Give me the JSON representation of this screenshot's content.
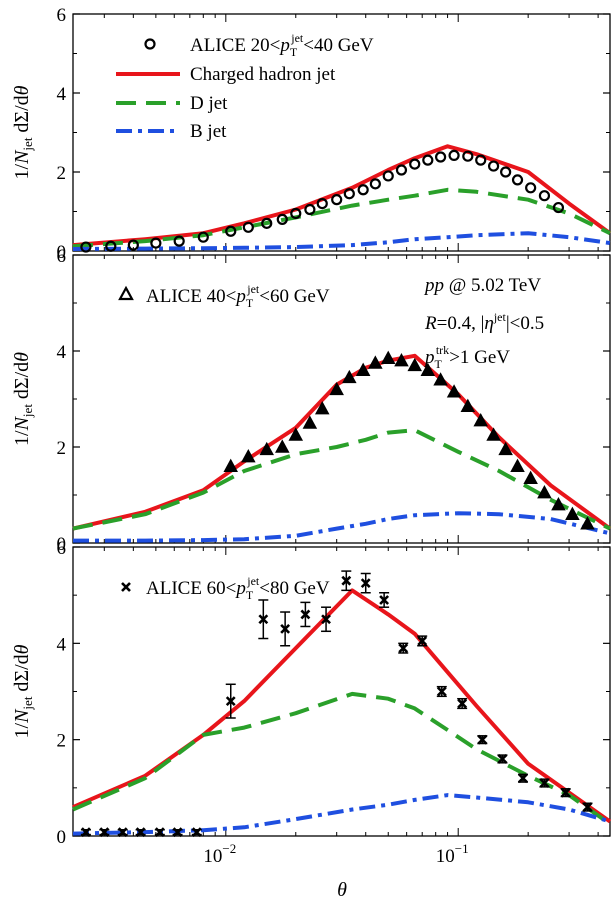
{
  "figure": {
    "ylabel": "1/N_jet dΣ/dθ",
    "xlabel": "θ",
    "x_ticklabels": [
      "10",
      "10"
    ],
    "x_tick_exponents": [
      "−2",
      "−1"
    ]
  },
  "chart_data": [
    {
      "type": "line",
      "panel": "top",
      "x_scale": "log",
      "xlim": [
        0.0022,
        0.45
      ],
      "ylim": [
        0,
        6
      ],
      "yticks": [
        0,
        2,
        4,
        6
      ],
      "legend_position": "top-left",
      "legend": [
        "ALICE 20<p_T^jet<40 GeV",
        "Charged hadron jet",
        "D jet",
        "B jet"
      ],
      "series": [
        {
          "name": "Charged hadron jet",
          "color": "#e8151b",
          "style": "solid",
          "x": [
            0.0022,
            0.0045,
            0.008,
            0.012,
            0.02,
            0.035,
            0.05,
            0.065,
            0.09,
            0.12,
            0.2,
            0.3,
            0.45
          ],
          "y": [
            0.15,
            0.3,
            0.45,
            0.7,
            1.05,
            1.6,
            2.05,
            2.35,
            2.65,
            2.45,
            2.0,
            1.2,
            0.45
          ]
        },
        {
          "name": "D jet",
          "color": "#2aa02a",
          "style": "dash",
          "x": [
            0.0022,
            0.0045,
            0.008,
            0.012,
            0.02,
            0.035,
            0.05,
            0.065,
            0.09,
            0.12,
            0.2,
            0.3,
            0.45
          ],
          "y": [
            0.12,
            0.25,
            0.4,
            0.6,
            0.85,
            1.15,
            1.3,
            1.4,
            1.55,
            1.5,
            1.3,
            0.95,
            0.45
          ]
        },
        {
          "name": "B jet",
          "color": "#1f4fe0",
          "style": "dashdot",
          "x": [
            0.0022,
            0.0045,
            0.008,
            0.012,
            0.02,
            0.035,
            0.05,
            0.065,
            0.09,
            0.12,
            0.2,
            0.3,
            0.45
          ],
          "y": [
            0.05,
            0.06,
            0.07,
            0.08,
            0.1,
            0.15,
            0.22,
            0.3,
            0.35,
            0.4,
            0.45,
            0.35,
            0.2
          ]
        },
        {
          "name": "ALICE 20<p_T^jet<40 GeV",
          "marker": "circle",
          "x": [
            0.0025,
            0.0032,
            0.004,
            0.005,
            0.0063,
            0.008,
            0.0105,
            0.0125,
            0.015,
            0.0175,
            0.02,
            0.023,
            0.026,
            0.03,
            0.034,
            0.039,
            0.044,
            0.05,
            0.057,
            0.065,
            0.074,
            0.084,
            0.096,
            0.11,
            0.125,
            0.142,
            0.16,
            0.18,
            0.205,
            0.235,
            0.27
          ],
          "y": [
            0.1,
            0.12,
            0.15,
            0.2,
            0.25,
            0.35,
            0.5,
            0.6,
            0.7,
            0.8,
            0.95,
            1.05,
            1.2,
            1.3,
            1.45,
            1.55,
            1.7,
            1.9,
            2.05,
            2.2,
            2.3,
            2.38,
            2.42,
            2.4,
            2.3,
            2.15,
            2.0,
            1.8,
            1.6,
            1.4,
            1.1
          ]
        }
      ]
    },
    {
      "type": "line",
      "panel": "middle",
      "x_scale": "log",
      "xlim": [
        0.0022,
        0.45
      ],
      "ylim": [
        0,
        6
      ],
      "yticks": [
        0,
        2,
        4,
        6
      ],
      "legend": [
        "ALICE 40<p_T^jet<60 GeV"
      ],
      "annotations": [
        "pp @ 5.02 TeV",
        "R=0.4, |η^jet|<0.5",
        "p_T^trk>1 GeV"
      ],
      "series": [
        {
          "name": "Charged hadron jet",
          "color": "#e8151b",
          "style": "solid",
          "x": [
            0.0022,
            0.0045,
            0.008,
            0.012,
            0.02,
            0.03,
            0.04,
            0.05,
            0.065,
            0.1,
            0.15,
            0.25,
            0.45
          ],
          "y": [
            0.3,
            0.65,
            1.1,
            1.7,
            2.4,
            3.3,
            3.65,
            3.8,
            3.9,
            3.1,
            2.2,
            1.2,
            0.3
          ]
        },
        {
          "name": "D jet",
          "color": "#2aa02a",
          "style": "dash",
          "x": [
            0.0022,
            0.0045,
            0.008,
            0.012,
            0.02,
            0.03,
            0.04,
            0.05,
            0.065,
            0.1,
            0.15,
            0.25,
            0.45
          ],
          "y": [
            0.3,
            0.6,
            1.05,
            1.5,
            1.85,
            2.0,
            2.15,
            2.3,
            2.35,
            1.9,
            1.5,
            0.9,
            0.3
          ]
        },
        {
          "name": "B jet",
          "color": "#1f4fe0",
          "style": "dashdot",
          "x": [
            0.0022,
            0.0045,
            0.008,
            0.012,
            0.02,
            0.03,
            0.04,
            0.05,
            0.065,
            0.1,
            0.15,
            0.25,
            0.45
          ],
          "y": [
            0.05,
            0.05,
            0.06,
            0.08,
            0.15,
            0.3,
            0.4,
            0.5,
            0.58,
            0.62,
            0.6,
            0.5,
            0.2
          ]
        },
        {
          "name": "ALICE 40<p_T^jet<60 GeV",
          "marker": "triangle",
          "x": [
            0.0105,
            0.0125,
            0.015,
            0.0175,
            0.02,
            0.023,
            0.026,
            0.03,
            0.034,
            0.039,
            0.044,
            0.05,
            0.057,
            0.065,
            0.074,
            0.084,
            0.096,
            0.11,
            0.125,
            0.142,
            0.16,
            0.18,
            0.205,
            0.235,
            0.27,
            0.31,
            0.36
          ],
          "y": [
            1.6,
            1.8,
            1.95,
            2.0,
            2.25,
            2.5,
            2.8,
            3.2,
            3.45,
            3.6,
            3.75,
            3.85,
            3.8,
            3.7,
            3.6,
            3.4,
            3.15,
            2.85,
            2.55,
            2.25,
            1.95,
            1.6,
            1.35,
            1.05,
            0.8,
            0.6,
            0.4
          ]
        }
      ]
    },
    {
      "type": "line",
      "panel": "bottom",
      "x_scale": "log",
      "xlim": [
        0.0022,
        0.45
      ],
      "ylim": [
        0,
        6
      ],
      "yticks": [
        0,
        2,
        4,
        6
      ],
      "legend": [
        "ALICE 60<p_T^jet<80 GeV"
      ],
      "series": [
        {
          "name": "Charged hadron jet",
          "color": "#e8151b",
          "style": "solid",
          "x": [
            0.0022,
            0.0045,
            0.008,
            0.012,
            0.02,
            0.035,
            0.05,
            0.065,
            0.09,
            0.12,
            0.2,
            0.3,
            0.45
          ],
          "y": [
            0.6,
            1.25,
            2.1,
            2.8,
            3.9,
            5.1,
            4.6,
            4.2,
            3.4,
            2.7,
            1.5,
            0.9,
            0.3
          ]
        },
        {
          "name": "D jet",
          "color": "#2aa02a",
          "style": "dash",
          "x": [
            0.0022,
            0.0045,
            0.008,
            0.012,
            0.02,
            0.035,
            0.05,
            0.065,
            0.09,
            0.12,
            0.2,
            0.3,
            0.45
          ],
          "y": [
            0.55,
            1.2,
            2.1,
            2.25,
            2.55,
            2.95,
            2.85,
            2.65,
            2.2,
            1.8,
            1.25,
            0.85,
            0.25
          ]
        },
        {
          "name": "B jet",
          "color": "#1f4fe0",
          "style": "dashdot",
          "x": [
            0.0022,
            0.0045,
            0.008,
            0.012,
            0.02,
            0.035,
            0.05,
            0.065,
            0.09,
            0.12,
            0.2,
            0.3,
            0.45
          ],
          "y": [
            0.05,
            0.08,
            0.12,
            0.18,
            0.35,
            0.55,
            0.65,
            0.75,
            0.85,
            0.8,
            0.7,
            0.55,
            0.3
          ]
        },
        {
          "name": "ALICE 60<p_T^jet<80 GeV",
          "marker": "cross",
          "x": [
            0.0025,
            0.003,
            0.0036,
            0.0043,
            0.0052,
            0.0062,
            0.0075,
            0.0105,
            0.0145,
            0.018,
            0.022,
            0.027,
            0.033,
            0.04,
            0.048,
            0.058,
            0.07,
            0.085,
            0.104,
            0.127,
            0.155,
            0.19,
            0.235,
            0.29,
            0.36
          ],
          "y": [
            0.08,
            0.08,
            0.08,
            0.08,
            0.08,
            0.08,
            0.08,
            2.8,
            4.5,
            4.3,
            4.6,
            4.5,
            5.3,
            5.25,
            4.9,
            3.9,
            4.05,
            3.0,
            2.75,
            2.0,
            1.6,
            1.2,
            1.1,
            0.9,
            0.6
          ],
          "yerr": [
            0.05,
            0.05,
            0.05,
            0.05,
            0.05,
            0.05,
            0.05,
            0.35,
            0.4,
            0.35,
            0.25,
            0.25,
            0.2,
            0.2,
            0.15,
            0.1,
            0.1,
            0.1,
            0.1,
            0.08,
            0.08,
            0.08,
            0.08,
            0.08,
            0.08
          ]
        }
      ]
    }
  ]
}
